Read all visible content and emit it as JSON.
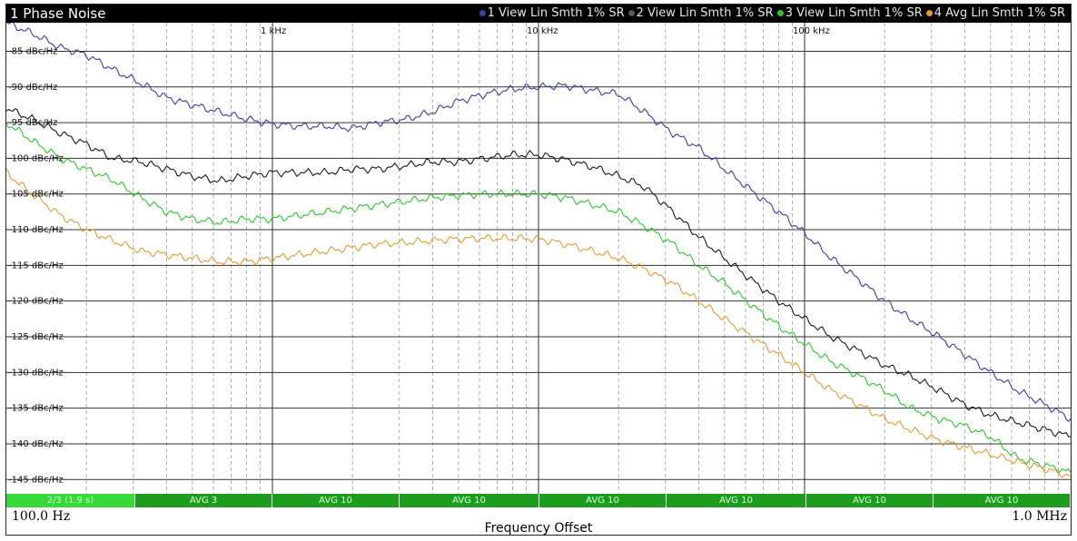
{
  "window": {
    "title": "1 Phase Noise"
  },
  "legend": [
    {
      "label": "1 View Lin Smth 1% SR",
      "color": "#3b3fa0"
    },
    {
      "label": "2 View Lin Smth 1% SR",
      "color": "#555555"
    },
    {
      "label": "3 View Lin Smth 1% SR",
      "color": "#2ec62e"
    },
    {
      "label": "4 Avg Lin Smth 1% SR",
      "color": "#e39b33"
    }
  ],
  "status_bar": [
    "2/3 (1.9 s)",
    "AVG 3",
    "AVG 10",
    "AVG 10",
    "AVG 10",
    "AVG 10",
    "AVG 10",
    "AVG 10"
  ],
  "x_axis": {
    "start_label": "100.0 Hz",
    "stop_label": "1.0 MHz",
    "title": "Frequency Offset"
  },
  "chart_data": {
    "type": "line",
    "title": "1 Phase Noise",
    "xlabel": "Frequency Offset",
    "ylabel": "",
    "x_scale": "log",
    "xlim": [
      100,
      1000000
    ],
    "ylim": [
      -147,
      -81
    ],
    "x_tick_values": [
      1000,
      10000,
      100000
    ],
    "x_tick_labels": [
      "1 kHz",
      "10 kHz",
      "100 kHz"
    ],
    "y_tick_values": [
      -85,
      -90,
      -95,
      -100,
      -105,
      -110,
      -115,
      -120,
      -125,
      -130,
      -135,
      -140,
      -145
    ],
    "y_tick_labels": [
      "-85 dBc/Hz",
      "-90 dBc/Hz",
      "-95 dBc/Hz",
      "-100 dBc/Hz",
      "-105 dBc/Hz",
      "-110 dBc/Hz",
      "-115 dBc/Hz",
      "-120 dBc/Hz",
      "-125 dBc/Hz",
      "-130 dBc/Hz",
      "-135 dBc/Hz",
      "-140 dBc/Hz",
      "-145 dBc/Hz"
    ],
    "grid": true,
    "legend_position": "top-right",
    "series": [
      {
        "name": "1 View Lin Smth 1% SR",
        "color": "#3b3fa0",
        "x": [
          100,
          125,
          160,
          200,
          250,
          320,
          400,
          500,
          630,
          800,
          1000,
          1260,
          1600,
          2000,
          2500,
          3200,
          4000,
          5000,
          6300,
          8000,
          10000,
          12600,
          16000,
          20000,
          25000,
          32000,
          40000,
          50000,
          63000,
          80000,
          100000,
          126000,
          160000,
          200000,
          250000,
          320000,
          400000,
          500000,
          630000,
          800000,
          1000000
        ],
        "y": [
          -81,
          -82.5,
          -84.5,
          -85.5,
          -87.5,
          -89.5,
          -91.5,
          -92.5,
          -93.5,
          -94.5,
          -95.2,
          -95.5,
          -95.5,
          -95.8,
          -95,
          -94.5,
          -93.5,
          -92,
          -91,
          -90.3,
          -90,
          -89.8,
          -90.5,
          -91,
          -93.5,
          -96.5,
          -98.5,
          -101.5,
          -104.5,
          -107.5,
          -110.5,
          -114,
          -117,
          -120,
          -122.5,
          -125,
          -127.5,
          -130,
          -132.5,
          -134.5,
          -136.5
        ]
      },
      {
        "name": "2 View Lin Smth 1% SR",
        "color": "#1a1a1a",
        "x": [
          100,
          125,
          160,
          200,
          250,
          320,
          400,
          500,
          630,
          800,
          1000,
          1260,
          1600,
          2000,
          2500,
          3200,
          4000,
          5000,
          6300,
          8000,
          10000,
          12600,
          16000,
          20000,
          25000,
          32000,
          40000,
          50000,
          63000,
          80000,
          100000,
          126000,
          160000,
          200000,
          250000,
          320000,
          400000,
          500000,
          630000,
          800000,
          1000000
        ],
        "y": [
          -93,
          -94.5,
          -96.5,
          -98,
          -100,
          -100.5,
          -101.5,
          -102.5,
          -103.2,
          -102.5,
          -102,
          -102,
          -102,
          -101.5,
          -101.5,
          -101,
          -100.5,
          -100.5,
          -100,
          -99.5,
          -99.5,
          -100.2,
          -101.2,
          -102.5,
          -104,
          -107.5,
          -111,
          -114,
          -117,
          -120,
          -122.5,
          -125,
          -127,
          -129,
          -130.5,
          -132.5,
          -134.5,
          -136,
          -137,
          -138,
          -139
        ]
      },
      {
        "name": "3 View Lin Smth 1% SR",
        "color": "#2ec62e",
        "x": [
          100,
          125,
          160,
          200,
          250,
          320,
          400,
          500,
          630,
          800,
          1000,
          1260,
          1600,
          2000,
          2500,
          3200,
          4000,
          5000,
          6300,
          8000,
          10000,
          12600,
          16000,
          20000,
          25000,
          32000,
          40000,
          50000,
          63000,
          80000,
          100000,
          126000,
          160000,
          200000,
          250000,
          320000,
          400000,
          500000,
          630000,
          800000,
          1000000
        ],
        "y": [
          -95,
          -97.5,
          -100,
          -101.5,
          -103,
          -105.5,
          -107.5,
          -108.5,
          -109,
          -108.5,
          -108.5,
          -108,
          -107.5,
          -107,
          -106.5,
          -106,
          -105.5,
          -105.2,
          -105,
          -105,
          -105,
          -105.5,
          -106.5,
          -107.5,
          -109.5,
          -112,
          -115,
          -117.5,
          -120.5,
          -123.5,
          -126,
          -128.5,
          -130.5,
          -132.5,
          -135,
          -136.5,
          -137.5,
          -139,
          -142,
          -143,
          -144
        ]
      },
      {
        "name": "4 Avg Lin Smth 1% SR",
        "color": "#e39b33",
        "x": [
          100,
          125,
          160,
          200,
          250,
          320,
          400,
          500,
          630,
          800,
          1000,
          1260,
          1600,
          2000,
          2500,
          3200,
          4000,
          5000,
          6300,
          8000,
          10000,
          12600,
          16000,
          20000,
          25000,
          32000,
          40000,
          50000,
          63000,
          80000,
          100000,
          126000,
          160000,
          200000,
          250000,
          320000,
          400000,
          500000,
          630000,
          800000,
          1000000
        ],
        "y": [
          -102,
          -105,
          -108,
          -110,
          -111.5,
          -113,
          -113.5,
          -114,
          -114.5,
          -114.5,
          -114,
          -113.5,
          -113,
          -112.5,
          -112,
          -111.8,
          -111.5,
          -111.3,
          -111.2,
          -111.2,
          -111.3,
          -112,
          -113,
          -114,
          -115.5,
          -117.5,
          -120,
          -122.5,
          -125,
          -127.5,
          -130,
          -132.5,
          -134.5,
          -136.5,
          -138,
          -139.5,
          -140.5,
          -141.5,
          -142.5,
          -143.5,
          -144.5
        ]
      }
    ]
  }
}
